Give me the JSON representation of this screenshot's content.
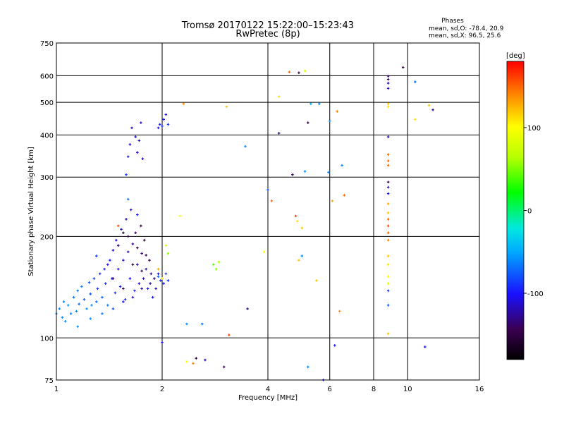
{
  "chart_data": {
    "type": "scatter",
    "title": "Tromsø 20170122 15:22:00–15:23:43",
    "subtitle": "RwPretec (8p)",
    "phases_note": {
      "heading": "Phases",
      "line1": "mean, sd,O: -78.4, 20.9",
      "line2": "mean, sd,X:  96.5, 25.6"
    },
    "xlabel": "Frequency [MHz]",
    "ylabel": "Stationary phase Virtual Height [km]",
    "x_scale": "log",
    "y_scale": "log",
    "xlim": [
      1,
      16
    ],
    "ylim": [
      75,
      750
    ],
    "x_ticks": [
      1,
      2,
      4,
      6,
      8,
      10,
      16
    ],
    "x_tick_labels": [
      "1",
      "2",
      "4",
      "6",
      "8",
      "10",
      "16"
    ],
    "x_gridlines": [
      2,
      4,
      6,
      8,
      10
    ],
    "y_ticks": [
      75,
      100,
      200,
      300,
      400,
      500,
      600,
      750
    ],
    "y_tick_labels": [
      "75",
      "100",
      "200",
      "300",
      "400",
      "500",
      "600",
      "750"
    ],
    "y_gridlines": [
      100,
      200,
      300,
      400,
      500,
      600
    ],
    "colorbar": {
      "label": "[deg]",
      "min": -180,
      "max": 180,
      "ticks": [
        100,
        0,
        -100
      ],
      "tick_labels": [
        "100",
        "0",
        "-100"
      ]
    },
    "grid": true,
    "points": [
      [
        1.0,
        118,
        -60
      ],
      [
        1.02,
        122,
        -62
      ],
      [
        1.04,
        115,
        -58
      ],
      [
        1.05,
        128,
        -65
      ],
      [
        1.06,
        112,
        -60
      ],
      [
        1.08,
        125,
        -55
      ],
      [
        1.1,
        118,
        -68
      ],
      [
        1.12,
        132,
        -70
      ],
      [
        1.14,
        120,
        -62
      ],
      [
        1.15,
        138,
        -65
      ],
      [
        1.16,
        126,
        -72
      ],
      [
        1.18,
        142,
        -60
      ],
      [
        1.2,
        130,
        -75
      ],
      [
        1.22,
        122,
        -58
      ],
      [
        1.24,
        146,
        -78
      ],
      [
        1.25,
        135,
        -82
      ],
      [
        1.26,
        125,
        -60
      ],
      [
        1.28,
        150,
        -85
      ],
      [
        1.3,
        128,
        -70
      ],
      [
        1.31,
        140,
        -88
      ],
      [
        1.33,
        155,
        -92
      ],
      [
        1.35,
        132,
        -75
      ],
      [
        1.37,
        160,
        -98
      ],
      [
        1.38,
        145,
        -90
      ],
      [
        1.4,
        125,
        -65
      ],
      [
        1.42,
        170,
        -100
      ],
      [
        1.44,
        150,
        -95
      ],
      [
        1.45,
        182,
        -110
      ],
      [
        1.47,
        136,
        -92
      ],
      [
        1.48,
        195,
        -115
      ],
      [
        1.5,
        160,
        -105
      ],
      [
        1.52,
        142,
        -98
      ],
      [
        1.53,
        210,
        -120
      ],
      [
        1.55,
        170,
        -112
      ],
      [
        1.57,
        130,
        -95
      ],
      [
        1.58,
        225,
        -125
      ],
      [
        1.6,
        180,
        -118
      ],
      [
        1.62,
        150,
        -100
      ],
      [
        1.63,
        240,
        -108
      ],
      [
        1.65,
        190,
        -130
      ],
      [
        1.67,
        138,
        -95
      ],
      [
        1.68,
        205,
        -140
      ],
      [
        1.7,
        165,
        -125
      ],
      [
        1.72,
        145,
        -105
      ],
      [
        1.74,
        215,
        -150
      ],
      [
        1.75,
        178,
        -135
      ],
      [
        1.77,
        150,
        -110
      ],
      [
        1.78,
        195,
        -160
      ],
      [
        1.8,
        160,
        -122
      ],
      [
        1.82,
        140,
        -100
      ],
      [
        1.84,
        170,
        -145
      ],
      [
        1.86,
        155,
        -128
      ],
      [
        1.88,
        132,
        -105
      ],
      [
        1.9,
        150,
        -130
      ],
      [
        1.92,
        140,
        -118
      ],
      [
        1.95,
        155,
        -108
      ],
      [
        1.98,
        148,
        -95
      ],
      [
        2.0,
        150,
        -90
      ],
      [
        2.02,
        145,
        -100
      ],
      [
        2.05,
        155,
        -85
      ],
      [
        2.08,
        148,
        -92
      ],
      [
        1.15,
        108,
        -58
      ],
      [
        1.25,
        114,
        -60
      ],
      [
        1.35,
        118,
        -66
      ],
      [
        1.45,
        122,
        -80
      ],
      [
        1.55,
        128,
        -100
      ],
      [
        1.65,
        132,
        -110
      ],
      [
        1.75,
        140,
        -120
      ],
      [
        1.85,
        145,
        -115
      ],
      [
        1.95,
        152,
        -70
      ],
      [
        1.3,
        175,
        -90
      ],
      [
        1.4,
        165,
        -110
      ],
      [
        1.5,
        188,
        -130
      ],
      [
        1.6,
        200,
        -145
      ],
      [
        1.7,
        185,
        -155
      ],
      [
        1.8,
        176,
        -140
      ],
      [
        1.45,
        150,
        -140
      ],
      [
        1.55,
        140,
        -150
      ],
      [
        1.65,
        165,
        -160
      ],
      [
        1.75,
        158,
        -150
      ],
      [
        1.5,
        215,
        160
      ],
      [
        1.55,
        205,
        -165
      ],
      [
        1.6,
        258,
        -70
      ],
      [
        1.7,
        232,
        -100
      ],
      [
        1.95,
        160,
        130
      ],
      [
        2.0,
        150,
        100
      ],
      [
        2.05,
        188,
        75
      ],
      [
        2.08,
        178,
        55
      ],
      [
        1.58,
        305,
        -90
      ],
      [
        1.6,
        345,
        -100
      ],
      [
        1.62,
        375,
        -110
      ],
      [
        1.64,
        420,
        -112
      ],
      [
        1.68,
        395,
        -105
      ],
      [
        1.7,
        355,
        -115
      ],
      [
        1.72,
        385,
        -118
      ],
      [
        1.74,
        435,
        -110
      ],
      [
        1.76,
        340,
        -108
      ],
      [
        1.95,
        420,
        -100
      ],
      [
        1.97,
        430,
        -95
      ],
      [
        2.0,
        425,
        -90
      ],
      [
        2.02,
        445,
        -102
      ],
      [
        2.05,
        460,
        -100
      ],
      [
        2.08,
        430,
        -92
      ],
      [
        2.0,
        97,
        -100
      ],
      [
        2.35,
        85,
        100
      ],
      [
        2.45,
        84,
        140
      ],
      [
        2.5,
        87,
        -150
      ],
      [
        2.65,
        86,
        -120
      ],
      [
        3.0,
        82,
        -140
      ],
      [
        2.35,
        110,
        -60
      ],
      [
        2.6,
        110,
        -70
      ],
      [
        2.3,
        495,
        140
      ],
      [
        3.05,
        485,
        120
      ],
      [
        2.25,
        230,
        100
      ],
      [
        3.45,
        370,
        -60
      ],
      [
        2.8,
        165,
        40
      ],
      [
        2.85,
        160,
        50
      ],
      [
        2.9,
        168,
        60
      ],
      [
        3.1,
        102,
        160
      ],
      [
        3.5,
        122,
        -130
      ],
      [
        4.0,
        275,
        -80
      ],
      [
        4.1,
        255,
        150
      ],
      [
        3.9,
        180,
        100
      ],
      [
        4.3,
        520,
        110
      ],
      [
        4.3,
        405,
        -130
      ],
      [
        4.6,
        615,
        150
      ],
      [
        4.9,
        612,
        -150
      ],
      [
        5.1,
        620,
        80
      ],
      [
        5.0,
        175,
        -60
      ],
      [
        5.2,
        435,
        -150
      ],
      [
        5.3,
        495,
        -50
      ],
      [
        4.7,
        305,
        -150
      ],
      [
        4.8,
        230,
        160
      ],
      [
        4.85,
        222,
        110
      ],
      [
        5.0,
        212,
        120
      ],
      [
        4.9,
        170,
        120
      ],
      [
        5.1,
        312,
        -60
      ],
      [
        5.2,
        82,
        -60
      ],
      [
        5.5,
        148,
        120
      ],
      [
        5.6,
        495,
        -60
      ],
      [
        5.75,
        75,
        -100
      ],
      [
        5.95,
        310,
        -60
      ],
      [
        6.0,
        440,
        -60
      ],
      [
        6.1,
        255,
        130
      ],
      [
        6.3,
        470,
        140
      ],
      [
        6.2,
        95,
        -100
      ],
      [
        6.4,
        120,
        140
      ],
      [
        6.5,
        325,
        -60
      ],
      [
        6.6,
        265,
        150
      ],
      [
        8.8,
        598,
        -140
      ],
      [
        8.8,
        585,
        -150
      ],
      [
        8.8,
        570,
        -120
      ],
      [
        8.8,
        550,
        -110
      ],
      [
        8.8,
        495,
        120
      ],
      [
        8.8,
        485,
        110
      ],
      [
        8.8,
        395,
        -120
      ],
      [
        8.8,
        350,
        150
      ],
      [
        8.8,
        335,
        150
      ],
      [
        8.8,
        325,
        150
      ],
      [
        8.8,
        290,
        -150
      ],
      [
        8.8,
        280,
        -120
      ],
      [
        8.8,
        268,
        -100
      ],
      [
        8.8,
        250,
        130
      ],
      [
        8.8,
        235,
        120
      ],
      [
        8.8,
        225,
        150
      ],
      [
        8.8,
        215,
        160
      ],
      [
        8.8,
        205,
        150
      ],
      [
        8.8,
        195,
        140
      ],
      [
        8.8,
        175,
        120
      ],
      [
        8.8,
        165,
        110
      ],
      [
        8.8,
        152,
        100
      ],
      [
        8.8,
        145,
        80
      ],
      [
        8.8,
        138,
        -90
      ],
      [
        8.8,
        125,
        -80
      ],
      [
        8.8,
        103,
        120
      ],
      [
        9.7,
        635,
        -150
      ],
      [
        10.5,
        575,
        -70
      ],
      [
        10.5,
        445,
        110
      ],
      [
        11.5,
        490,
        120
      ],
      [
        11.8,
        475,
        -130
      ],
      [
        11.2,
        94,
        -100
      ]
    ]
  }
}
